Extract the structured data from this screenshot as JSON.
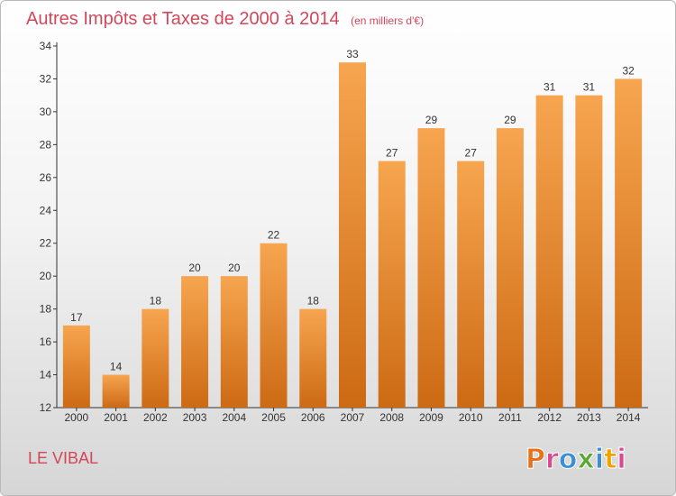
{
  "title": "Autres Impôts et Taxes de 2000 à 2014",
  "unit": "(en milliers d'€)",
  "commune": "LE VIBAL",
  "logo": "Proxiti",
  "colors": {
    "title": "#d2475a",
    "bar_top": "#f7a54f",
    "bar_bottom": "#cd6a14",
    "logo_letters": [
      "#e8711c",
      "#d94a8c",
      "#3c8fd6",
      "#5aa832",
      "#3c8fd6",
      "#f0a300",
      "#d94a8c"
    ]
  },
  "chart_data": {
    "type": "bar",
    "title": "Autres Impôts et Taxes de 2000 à 2014",
    "subtitle": "(en milliers d'€)",
    "xlabel": "",
    "ylabel": "",
    "categories": [
      "2000",
      "2001",
      "2002",
      "2003",
      "2004",
      "2005",
      "2006",
      "2007",
      "2008",
      "2009",
      "2010",
      "2011",
      "2012",
      "2013",
      "2014"
    ],
    "values": [
      17,
      14,
      18,
      20,
      20,
      22,
      18,
      33,
      27,
      29,
      27,
      29,
      31,
      31,
      32
    ],
    "ylim": [
      12,
      34
    ],
    "yticks": [
      12,
      14,
      16,
      18,
      20,
      22,
      24,
      26,
      28,
      30,
      32,
      34
    ],
    "grid": false,
    "legend": "none"
  }
}
